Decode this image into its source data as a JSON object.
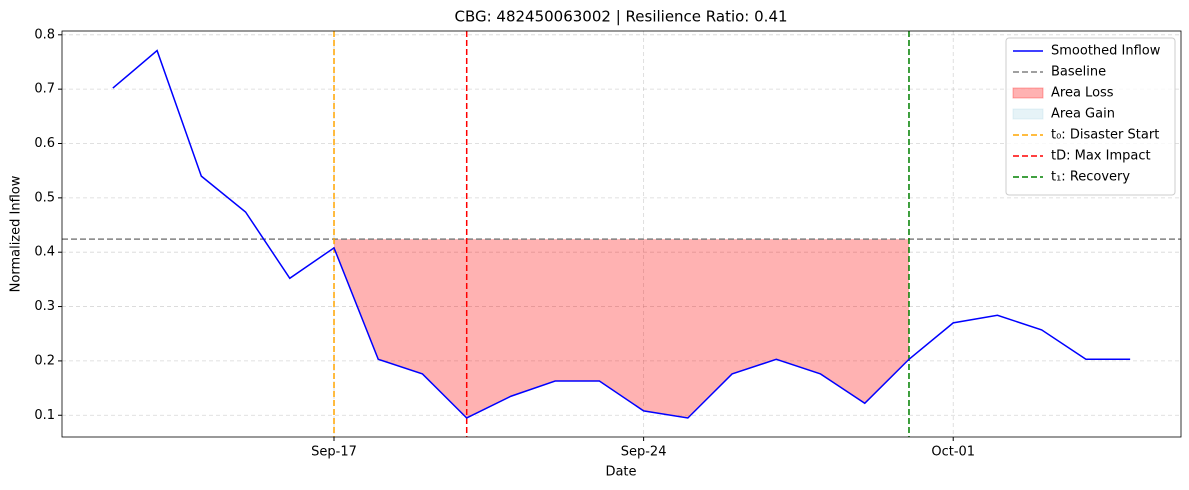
{
  "chart_data": {
    "type": "line",
    "title": "CBG: 482450063002 | Resilience Ratio: 0.41",
    "xlabel": "Date",
    "ylabel": "Normalized Inflow",
    "x": [
      "Sep-12",
      "Sep-13",
      "Sep-14",
      "Sep-15",
      "Sep-16",
      "Sep-17",
      "Sep-18",
      "Sep-19",
      "Sep-20",
      "Sep-21",
      "Sep-22",
      "Sep-23",
      "Sep-24",
      "Sep-25",
      "Sep-26",
      "Sep-27",
      "Sep-28",
      "Sep-29",
      "Sep-30",
      "Oct-01",
      "Oct-02",
      "Oct-03",
      "Oct-04",
      "Oct-05"
    ],
    "xticks": [
      "Sep-17",
      "Sep-24",
      "Oct-01"
    ],
    "series": [
      {
        "name": "Smoothed Inflow",
        "color": "#0000ff",
        "values": [
          0.702,
          0.771,
          0.54,
          0.474,
          0.352,
          0.408,
          0.203,
          0.176,
          0.095,
          0.135,
          0.163,
          0.163,
          0.108,
          0.095,
          0.176,
          0.203,
          0.176,
          0.122,
          0.203,
          0.27,
          0.284,
          0.257,
          0.203,
          0.203
        ]
      }
    ],
    "baseline": {
      "name": "Baseline",
      "value": 0.424,
      "color": "#808080"
    },
    "areas": [
      {
        "name": "Area Loss",
        "color": "#ff0000",
        "x_range": [
          "Sep-17",
          "Sep-30"
        ]
      },
      {
        "name": "Area Gain",
        "color": "#add8e6"
      }
    ],
    "events": [
      {
        "name": "t₀: Disaster Start",
        "x": "Sep-17",
        "color": "#ffa500"
      },
      {
        "name": "tD: Max Impact",
        "x": "Sep-20",
        "color": "#ff0000"
      },
      {
        "name": "t₁: Recovery",
        "x": "Sep-30",
        "color": "#008000"
      }
    ],
    "ylim": [
      0.06,
      0.807
    ],
    "yticks": [
      0.1,
      0.2,
      0.3,
      0.4,
      0.5,
      0.6,
      0.7,
      0.8
    ],
    "grid": true,
    "legend": "upper right"
  }
}
